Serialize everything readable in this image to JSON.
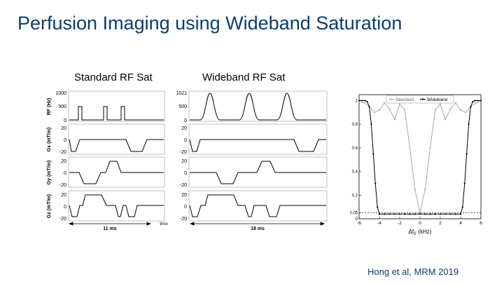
{
  "slide": {
    "title": "Perfusion Imaging using Wideband Saturation",
    "citation": "Hong et al, MRM 2019"
  },
  "colors": {
    "title": "#0b3d6e",
    "waveform": "#000000",
    "standard_curve": "#aaaaaa",
    "wideband_curve": "#000000"
  },
  "sequence_diagram": {
    "columns": [
      {
        "heading": "Standard RF Sat",
        "duration_label": "11 ms",
        "time_label": "time",
        "rf_ticks": [
          "1000",
          "500",
          "0"
        ]
      },
      {
        "heading": "Wideband RF Sat",
        "duration_label": "18 ms",
        "time_label": "",
        "rf_ticks": [
          "1021",
          "500",
          "0"
        ]
      }
    ],
    "rows": [
      {
        "key": "rf",
        "ylabel": "RF (Hz)"
      },
      {
        "key": "gx",
        "ylabel": "Gx (mT/m)",
        "ticks": [
          "20",
          "0",
          "-20"
        ]
      },
      {
        "key": "gy",
        "ylabel": "Gy (mT/m)",
        "ticks": [
          "20",
          "0",
          "-20"
        ]
      },
      {
        "key": "gz",
        "ylabel": "Gz (mT/m)",
        "ticks": [
          "20",
          "0",
          "-20"
        ]
      }
    ]
  },
  "chart_data": {
    "type": "line",
    "title": "",
    "xlabel_symbol": "Δf",
    "xlabel_sub": "0",
    "xlabel_unit": "(kHz)",
    "ylabel": "",
    "xlim": [
      -6,
      6
    ],
    "ylim": [
      0,
      1.05
    ],
    "xticks": [
      "-6",
      "-4",
      "-2",
      "0",
      "2",
      "4",
      "6"
    ],
    "yticks": [
      {
        "v": 0,
        "label": "0"
      },
      {
        "v": 0.05,
        "label": "0.05"
      },
      {
        "v": 0.2,
        "label": "0.2"
      },
      {
        "v": 0.4,
        "label": "0.4"
      },
      {
        "v": 0.6,
        "label": "0.6"
      },
      {
        "v": 0.8,
        "label": "0.8"
      },
      {
        "v": 1,
        "label": "1"
      }
    ],
    "threshold": 0.05,
    "legend_position": "top-center",
    "series": [
      {
        "name": "Standard",
        "x": [
          -6,
          -5.5,
          -5,
          -4.5,
          -4,
          -3.5,
          -3,
          -2.5,
          -2,
          -1.5,
          -1,
          -0.5,
          0,
          0.5,
          1,
          1.5,
          2,
          2.5,
          3,
          3.5,
          4,
          4.5,
          5,
          5.5,
          6
        ],
        "y": [
          0.99,
          0.98,
          0.95,
          0.9,
          0.92,
          0.98,
          0.93,
          0.84,
          0.97,
          0.92,
          0.6,
          0.25,
          0.05,
          0.25,
          0.6,
          0.92,
          0.97,
          0.84,
          0.93,
          0.98,
          0.92,
          0.9,
          0.95,
          0.98,
          0.99
        ]
      },
      {
        "name": "Wideband",
        "x": [
          -6,
          -5.7,
          -5.4,
          -5.2,
          -5,
          -4.8,
          -4.6,
          -4.4,
          -4.2,
          -4,
          -3.5,
          -3,
          -2.5,
          -2,
          -1.5,
          -1,
          -0.5,
          0,
          0.5,
          1,
          1.5,
          2,
          2.5,
          3,
          3.5,
          4,
          4.2,
          4.4,
          4.6,
          4.8,
          5,
          5.2,
          5.4,
          5.7,
          6
        ],
        "y": [
          1,
          1,
          1,
          0.99,
          0.95,
          0.8,
          0.55,
          0.3,
          0.1,
          0.04,
          0.04,
          0.04,
          0.04,
          0.04,
          0.04,
          0.04,
          0.04,
          0.04,
          0.04,
          0.04,
          0.04,
          0.04,
          0.04,
          0.04,
          0.04,
          0.04,
          0.1,
          0.3,
          0.55,
          0.8,
          0.95,
          0.99,
          1,
          1,
          1
        ]
      }
    ]
  }
}
